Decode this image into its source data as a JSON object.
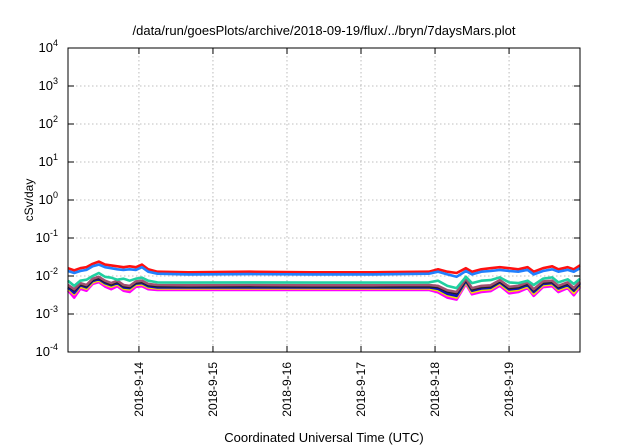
{
  "chart_data": {
    "type": "line",
    "title": "/data/run/goesPlots/archive/2018-09-19/flux/../bryn/7daysMars.plot",
    "xlabel": "Coordinated Universal Time (UTC)",
    "ylabel": "cSv/day",
    "x_units": "hours since 2018-09-13 00:00 UTC",
    "xlim": [
      1,
      167
    ],
    "ylim": [
      0.0001,
      10000
    ],
    "yscale": "log",
    "grid": true,
    "x_ticks": [
      {
        "value": 24,
        "label": "2018-9-14"
      },
      {
        "value": 48,
        "label": "2018-9-15"
      },
      {
        "value": 72,
        "label": "2018-9-16"
      },
      {
        "value": 96,
        "label": "2018-9-17"
      },
      {
        "value": 120,
        "label": "2018-9-18"
      },
      {
        "value": 144,
        "label": "2018-9-19"
      }
    ],
    "y_ticks": [
      {
        "exp": 4,
        "base": "10",
        "power": "4"
      },
      {
        "exp": 3,
        "base": "10",
        "power": "3"
      },
      {
        "exp": 2,
        "base": "10",
        "power": "2"
      },
      {
        "exp": 1,
        "base": "10",
        "power": "1"
      },
      {
        "exp": 0,
        "base": "10",
        "power": "0"
      },
      {
        "exp": -1,
        "base": "10",
        "power": "-1"
      },
      {
        "exp": -2,
        "base": "10",
        "power": "-2"
      },
      {
        "exp": -3,
        "base": "10",
        "power": "-3"
      },
      {
        "exp": -4,
        "base": "10",
        "power": "-4"
      }
    ],
    "x": [
      1,
      3,
      5,
      7,
      9,
      11,
      13,
      15,
      17,
      19,
      21,
      23,
      25,
      27,
      30,
      40,
      60,
      80,
      100,
      118,
      121,
      124,
      127,
      130,
      132,
      135,
      138,
      141,
      144,
      147,
      150,
      152,
      155,
      158,
      160,
      163,
      165,
      167
    ],
    "series": [
      {
        "name": "magenta",
        "color": "#ff00ff",
        "values": [
          0.0042,
          0.0027,
          0.0046,
          0.0041,
          0.0062,
          0.0069,
          0.0053,
          0.0045,
          0.0054,
          0.0041,
          0.0038,
          0.0052,
          0.0054,
          0.0045,
          0.0043,
          0.0043,
          0.0043,
          0.0043,
          0.0043,
          0.0043,
          0.0037,
          0.0027,
          0.0024,
          0.0062,
          0.0033,
          0.0038,
          0.004,
          0.0056,
          0.0035,
          0.0038,
          0.0048,
          0.003,
          0.0051,
          0.0054,
          0.0038,
          0.0048,
          0.0031,
          0.0051
        ]
      },
      {
        "name": "yellow",
        "color": "#f0e000",
        "values": [
          0.0046,
          0.0033,
          0.0052,
          0.0046,
          0.0068,
          0.0076,
          0.006,
          0.0052,
          0.006,
          0.0046,
          0.0044,
          0.0058,
          0.006,
          0.005,
          0.0047,
          0.0047,
          0.0047,
          0.0047,
          0.0047,
          0.0047,
          0.0042,
          0.0031,
          0.0027,
          0.0068,
          0.0037,
          0.0043,
          0.0045,
          0.0062,
          0.004,
          0.0043,
          0.0053,
          0.0034,
          0.0057,
          0.006,
          0.0043,
          0.0053,
          0.0036,
          0.0057
        ]
      },
      {
        "name": "dark-blue",
        "color": "#1010c0",
        "values": [
          0.005,
          0.0036,
          0.0057,
          0.005,
          0.0074,
          0.0083,
          0.0065,
          0.0057,
          0.0065,
          0.005,
          0.0048,
          0.0063,
          0.0065,
          0.0054,
          0.005,
          0.005,
          0.005,
          0.005,
          0.005,
          0.005,
          0.0046,
          0.0034,
          0.003,
          0.0074,
          0.0041,
          0.0047,
          0.0049,
          0.0068,
          0.0044,
          0.0047,
          0.0058,
          0.0038,
          0.0062,
          0.0065,
          0.0047,
          0.0058,
          0.0041,
          0.0062
        ]
      },
      {
        "name": "black",
        "color": "#202020",
        "values": [
          0.0054,
          0.0042,
          0.006,
          0.0054,
          0.0079,
          0.0088,
          0.007,
          0.006,
          0.007,
          0.0054,
          0.0051,
          0.0067,
          0.007,
          0.0058,
          0.0054,
          0.0053,
          0.0054,
          0.0053,
          0.0053,
          0.0054,
          0.0051,
          0.0039,
          0.0035,
          0.0079,
          0.0045,
          0.0051,
          0.0053,
          0.0073,
          0.0048,
          0.0051,
          0.0063,
          0.0042,
          0.0067,
          0.007,
          0.0051,
          0.0063,
          0.0045,
          0.0067
        ]
      },
      {
        "name": "brown",
        "color": "#a05070",
        "values": [
          0.0058,
          0.0045,
          0.0065,
          0.0058,
          0.0085,
          0.0095,
          0.0075,
          0.0065,
          0.0075,
          0.0058,
          0.0055,
          0.0072,
          0.0075,
          0.0062,
          0.0058,
          0.0057,
          0.0058,
          0.0057,
          0.0057,
          0.0058,
          0.0055,
          0.0042,
          0.0038,
          0.0085,
          0.0048,
          0.0055,
          0.0057,
          0.0078,
          0.0052,
          0.0055,
          0.0068,
          0.0045,
          0.0072,
          0.0075,
          0.0055,
          0.0068,
          0.0048,
          0.0072
        ]
      },
      {
        "name": "green",
        "color": "#20d0a0",
        "values": [
          0.0075,
          0.0055,
          0.0075,
          0.008,
          0.01,
          0.012,
          0.0095,
          0.009,
          0.008,
          0.0085,
          0.0075,
          0.0085,
          0.009,
          0.0075,
          0.0068,
          0.0067,
          0.0068,
          0.0067,
          0.0067,
          0.0068,
          0.0075,
          0.0055,
          0.0048,
          0.0095,
          0.0065,
          0.0075,
          0.0078,
          0.0092,
          0.0068,
          0.0065,
          0.0075,
          0.0058,
          0.0085,
          0.0092,
          0.0068,
          0.0082,
          0.0062,
          0.0085
        ]
      },
      {
        "name": "red",
        "color": "#ff1010",
        "values": [
          0.016,
          0.014,
          0.016,
          0.017,
          0.021,
          0.024,
          0.02,
          0.019,
          0.018,
          0.017,
          0.018,
          0.017,
          0.02,
          0.015,
          0.013,
          0.0125,
          0.013,
          0.0125,
          0.0125,
          0.013,
          0.015,
          0.013,
          0.012,
          0.016,
          0.013,
          0.015,
          0.016,
          0.017,
          0.016,
          0.015,
          0.017,
          0.013,
          0.016,
          0.018,
          0.015,
          0.017,
          0.015,
          0.019
        ]
      },
      {
        "name": "blue",
        "color": "#2080ff",
        "values": [
          0.0135,
          0.012,
          0.0135,
          0.0145,
          0.018,
          0.02,
          0.017,
          0.016,
          0.015,
          0.0145,
          0.015,
          0.0145,
          0.017,
          0.013,
          0.0115,
          0.011,
          0.0112,
          0.011,
          0.011,
          0.0115,
          0.013,
          0.011,
          0.0095,
          0.0135,
          0.011,
          0.013,
          0.0135,
          0.0145,
          0.0135,
          0.013,
          0.0145,
          0.011,
          0.0135,
          0.015,
          0.013,
          0.0145,
          0.013,
          0.016
        ]
      }
    ]
  }
}
